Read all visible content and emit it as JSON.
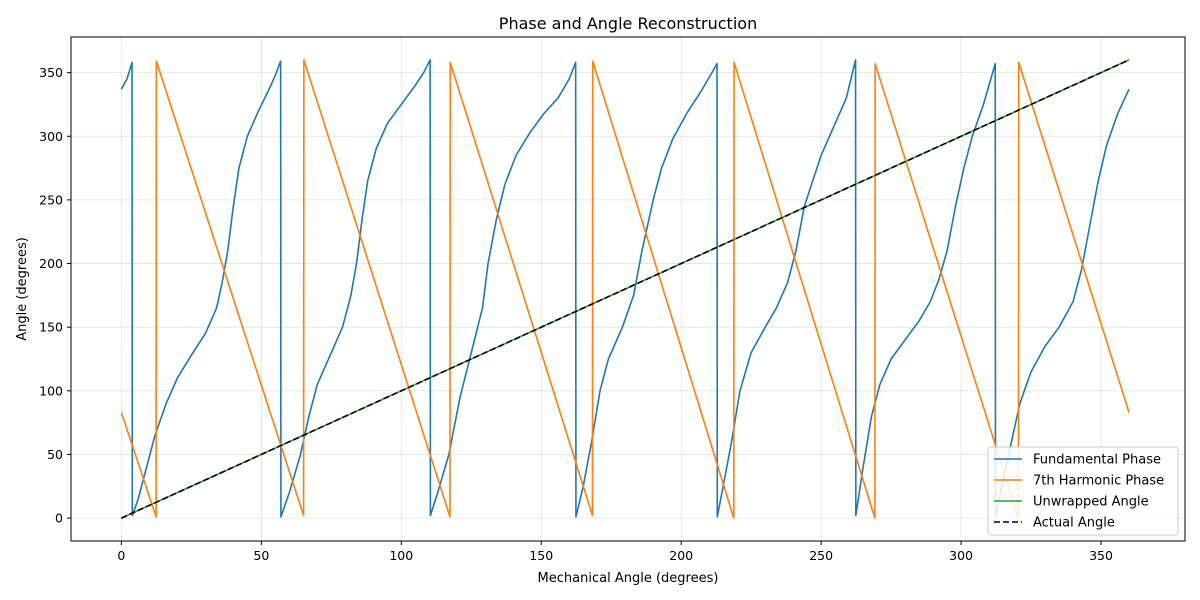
{
  "chart_data": {
    "type": "line",
    "title": "Phase and Angle Reconstruction",
    "xlabel": "Mechanical Angle (degrees)",
    "ylabel": "Angle (degrees)",
    "xlim": [
      -18,
      380
    ],
    "ylim": [
      -18,
      378
    ],
    "xticks": [
      0,
      50,
      100,
      150,
      200,
      250,
      300,
      350
    ],
    "yticks": [
      0,
      50,
      100,
      150,
      200,
      250,
      300,
      350
    ],
    "grid": true,
    "legend_position": "lower-right",
    "series": [
      {
        "name": "Fundamental Phase",
        "color": "#1f77b4",
        "style": "solid",
        "points": [
          [
            0,
            337
          ],
          [
            2,
            345
          ],
          [
            3.8,
            358
          ],
          [
            3.9,
            2
          ],
          [
            6,
            15
          ],
          [
            9,
            40
          ],
          [
            12,
            65
          ],
          [
            16,
            90
          ],
          [
            20,
            110
          ],
          [
            25,
            128
          ],
          [
            30,
            145
          ],
          [
            34,
            165
          ],
          [
            36,
            185
          ],
          [
            38,
            210
          ],
          [
            40,
            245
          ],
          [
            42,
            275
          ],
          [
            45,
            300
          ],
          [
            49,
            320
          ],
          [
            53,
            338
          ],
          [
            55,
            348
          ],
          [
            56.9,
            359
          ],
          [
            57,
            1
          ],
          [
            60,
            20
          ],
          [
            64,
            50
          ],
          [
            67,
            80
          ],
          [
            70,
            105
          ],
          [
            75,
            130
          ],
          [
            79,
            150
          ],
          [
            82,
            175
          ],
          [
            84,
            200
          ],
          [
            86,
            235
          ],
          [
            88,
            265
          ],
          [
            91,
            290
          ],
          [
            95,
            310
          ],
          [
            100,
            325
          ],
          [
            105,
            340
          ],
          [
            108,
            350
          ],
          [
            110.3,
            360
          ],
          [
            110.4,
            2
          ],
          [
            113,
            20
          ],
          [
            117,
            50
          ],
          [
            121,
            95
          ],
          [
            125,
            130
          ],
          [
            129,
            165
          ],
          [
            131,
            200
          ],
          [
            134,
            235
          ],
          [
            137,
            262
          ],
          [
            141,
            285
          ],
          [
            146,
            303
          ],
          [
            151,
            318
          ],
          [
            156,
            330
          ],
          [
            160,
            345
          ],
          [
            162.3,
            358
          ],
          [
            162.4,
            1
          ],
          [
            165,
            25
          ],
          [
            168,
            60
          ],
          [
            171,
            100
          ],
          [
            174,
            125
          ],
          [
            179,
            150
          ],
          [
            183,
            175
          ],
          [
            186,
            210
          ],
          [
            190,
            250
          ],
          [
            193,
            275
          ],
          [
            197,
            298
          ],
          [
            202,
            318
          ],
          [
            207,
            335
          ],
          [
            211,
            350
          ],
          [
            212.8,
            357
          ],
          [
            212.9,
            1
          ],
          [
            215,
            25
          ],
          [
            218,
            60
          ],
          [
            221,
            100
          ],
          [
            225,
            130
          ],
          [
            230,
            150
          ],
          [
            234,
            165
          ],
          [
            238,
            185
          ],
          [
            241,
            210
          ],
          [
            244,
            245
          ],
          [
            247,
            265
          ],
          [
            250,
            285
          ],
          [
            255,
            310
          ],
          [
            259,
            330
          ],
          [
            262.3,
            360
          ],
          [
            262.4,
            2
          ],
          [
            265,
            40
          ],
          [
            268,
            80
          ],
          [
            271,
            105
          ],
          [
            275,
            125
          ],
          [
            280,
            140
          ],
          [
            285,
            155
          ],
          [
            289,
            170
          ],
          [
            292,
            187
          ],
          [
            295,
            210
          ],
          [
            298,
            245
          ],
          [
            301,
            275
          ],
          [
            304,
            300
          ],
          [
            308,
            325
          ],
          [
            312.2,
            357
          ],
          [
            312.3,
            1
          ],
          [
            315,
            30
          ],
          [
            318,
            60
          ],
          [
            321,
            90
          ],
          [
            325,
            115
          ],
          [
            330,
            135
          ],
          [
            335,
            150
          ],
          [
            340,
            170
          ],
          [
            343,
            195
          ],
          [
            346,
            230
          ],
          [
            349,
            265
          ],
          [
            352,
            293
          ],
          [
            356,
            318
          ],
          [
            360,
            337
          ]
        ]
      },
      {
        "name": "7th Harmonic Phase",
        "color": "#ff7f0e",
        "style": "solid",
        "points": [
          [
            0,
            83
          ],
          [
            12.4,
            1
          ],
          [
            12.5,
            359
          ],
          [
            65.1,
            2
          ],
          [
            65.2,
            360
          ],
          [
            117.4,
            1
          ],
          [
            117.5,
            358
          ],
          [
            168.3,
            2
          ],
          [
            168.4,
            359
          ],
          [
            218.8,
            0
          ],
          [
            218.9,
            358
          ],
          [
            269.2,
            0
          ],
          [
            269.3,
            357
          ],
          [
            320.5,
            0
          ],
          [
            320.6,
            358
          ],
          [
            360,
            83
          ]
        ]
      },
      {
        "name": "Unwrapped Angle",
        "color": "#2ca02c",
        "style": "solid",
        "points": [
          [
            0,
            0
          ],
          [
            360,
            360
          ]
        ]
      },
      {
        "name": "Actual Angle",
        "color": "#000000",
        "style": "dashed",
        "points": [
          [
            0,
            0
          ],
          [
            360,
            360
          ]
        ]
      }
    ]
  }
}
